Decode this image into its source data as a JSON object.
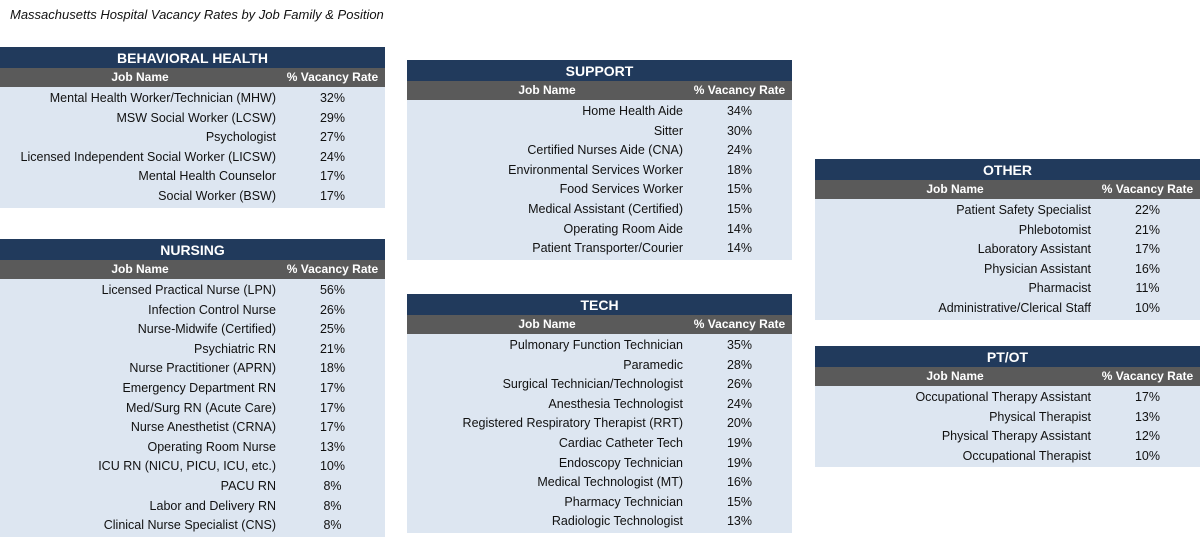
{
  "title": "Massachusetts Hospital Vacancy Rates by Job Family & Position",
  "panels": [
    {
      "id": "behavioral-health",
      "heading": "BEHAVIORAL HEALTH",
      "col_name": "Job Name",
      "col_rate": "% Vacancy Rate",
      "rows": [
        {
          "name": "Mental Health Worker/Technician (MHW)",
          "rate": "32%"
        },
        {
          "name": "MSW Social Worker (LCSW)",
          "rate": "29%"
        },
        {
          "name": "Psychologist",
          "rate": "27%"
        },
        {
          "name": "Licensed Independent Social Worker (LICSW)",
          "rate": "24%"
        },
        {
          "name": "Mental Health Counselor",
          "rate": "17%"
        },
        {
          "name": "Social Worker (BSW)",
          "rate": "17%"
        }
      ]
    },
    {
      "id": "nursing",
      "heading": "NURSING",
      "col_name": "Job Name",
      "col_rate": "% Vacancy Rate",
      "rows": [
        {
          "name": "Licensed Practical Nurse (LPN)",
          "rate": "56%"
        },
        {
          "name": "Infection Control Nurse",
          "rate": "26%"
        },
        {
          "name": "Nurse-Midwife (Certified)",
          "rate": "25%"
        },
        {
          "name": "Psychiatric RN",
          "rate": "21%"
        },
        {
          "name": "Nurse Practitioner (APRN)",
          "rate": "18%"
        },
        {
          "name": "Emergency Department RN",
          "rate": "17%"
        },
        {
          "name": "Med/Surg RN (Acute Care)",
          "rate": "17%"
        },
        {
          "name": "Nurse Anesthetist (CRNA)",
          "rate": "17%"
        },
        {
          "name": "Operating Room Nurse",
          "rate": "13%"
        },
        {
          "name": "ICU RN (NICU, PICU, ICU, etc.)",
          "rate": "10%"
        },
        {
          "name": "PACU RN",
          "rate": "8%"
        },
        {
          "name": "Labor and Delivery RN",
          "rate": "8%"
        },
        {
          "name": "Clinical Nurse Specialist (CNS)",
          "rate": "8%"
        }
      ]
    },
    {
      "id": "support",
      "heading": "SUPPORT",
      "col_name": "Job Name",
      "col_rate": "% Vacancy Rate",
      "rows": [
        {
          "name": "Home Health Aide",
          "rate": "34%"
        },
        {
          "name": "Sitter",
          "rate": "30%"
        },
        {
          "name": "Certified Nurses Aide (CNA)",
          "rate": "24%"
        },
        {
          "name": "Environmental Services Worker",
          "rate": "18%"
        },
        {
          "name": "Food Services Worker",
          "rate": "15%"
        },
        {
          "name": "Medical Assistant (Certified)",
          "rate": "15%"
        },
        {
          "name": "Operating Room Aide",
          "rate": "14%"
        },
        {
          "name": "Patient Transporter/Courier",
          "rate": "14%"
        }
      ]
    },
    {
      "id": "tech",
      "heading": "TECH",
      "col_name": "Job Name",
      "col_rate": "% Vacancy Rate",
      "rows": [
        {
          "name": "Pulmonary Function Technician",
          "rate": "35%"
        },
        {
          "name": "Paramedic",
          "rate": "28%"
        },
        {
          "name": "Surgical Technician/Technologist",
          "rate": "26%"
        },
        {
          "name": "Anesthesia Technologist",
          "rate": "24%"
        },
        {
          "name": "Registered Respiratory Therapist (RRT)",
          "rate": "20%"
        },
        {
          "name": "Cardiac Catheter Tech",
          "rate": "19%"
        },
        {
          "name": "Endoscopy Technician",
          "rate": "19%"
        },
        {
          "name": "Medical Technologist (MT)",
          "rate": "16%"
        },
        {
          "name": "Pharmacy Technician",
          "rate": "15%"
        },
        {
          "name": "Radiologic Technologist",
          "rate": "13%"
        }
      ]
    },
    {
      "id": "other",
      "heading": "OTHER",
      "col_name": "Job Name",
      "col_rate": "% Vacancy Rate",
      "rows": [
        {
          "name": "Patient Safety Specialist",
          "rate": "22%"
        },
        {
          "name": "Phlebotomist",
          "rate": "21%"
        },
        {
          "name": "Laboratory Assistant",
          "rate": "17%"
        },
        {
          "name": "Physician Assistant",
          "rate": "16%"
        },
        {
          "name": "Pharmacist",
          "rate": "11%"
        },
        {
          "name": "Administrative/Clerical Staff",
          "rate": "10%"
        }
      ]
    },
    {
      "id": "pt-ot",
      "heading": "PT/OT",
      "col_name": "Job Name",
      "col_rate": "% Vacancy Rate",
      "rows": [
        {
          "name": "Occupational Therapy Assistant",
          "rate": "17%"
        },
        {
          "name": "Physical Therapist",
          "rate": "13%"
        },
        {
          "name": "Physical Therapy Assistant",
          "rate": "12%"
        },
        {
          "name": "Occupational Therapist",
          "rate": "10%"
        }
      ]
    }
  ]
}
